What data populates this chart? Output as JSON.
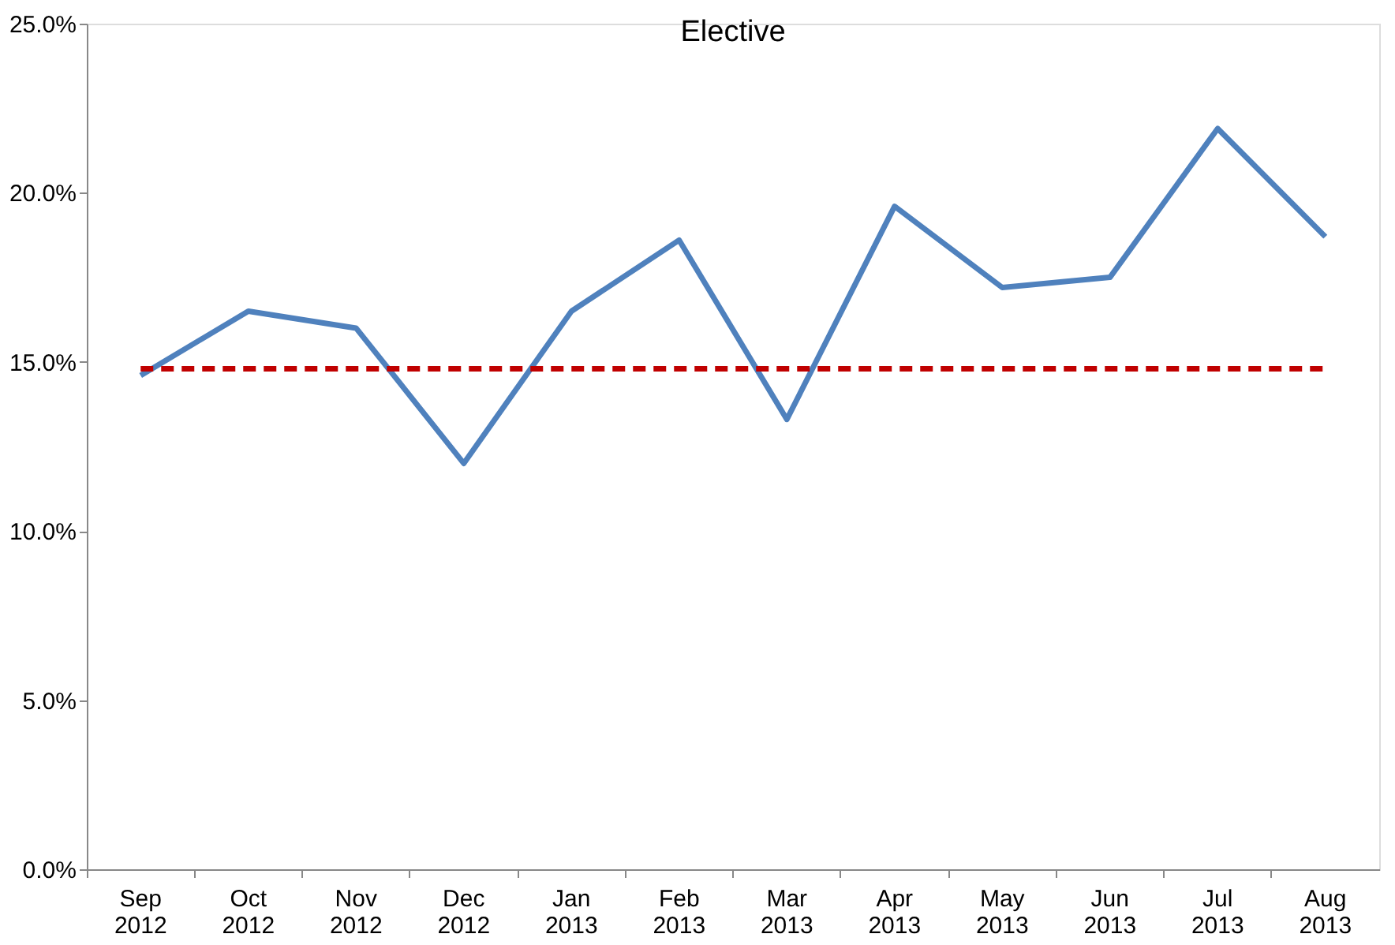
{
  "chart_data": {
    "type": "line",
    "title": "Elective",
    "categories": [
      "Sep 2012",
      "Oct 2012",
      "Nov 2012",
      "Dec 2012",
      "Jan 2013",
      "Feb 2013",
      "Mar 2013",
      "Apr 2013",
      "May 2013",
      "Jun 2013",
      "Jul 2013",
      "Aug 2013"
    ],
    "series": [
      {
        "color": "#4f81bd",
        "values": [
          14.6,
          16.5,
          16.0,
          12.0,
          16.5,
          18.6,
          13.3,
          19.6,
          17.2,
          17.5,
          21.9,
          18.7
        ]
      }
    ],
    "ylim": [
      0,
      25
    ],
    "yticks": [
      {
        "value": 0,
        "label": "0.0%"
      },
      {
        "value": 5,
        "label": "5.0%"
      },
      {
        "value": 10,
        "label": "10.0%"
      },
      {
        "value": 15,
        "label": "15.0%"
      },
      {
        "value": 20,
        "label": "20.0%"
      },
      {
        "value": 25,
        "label": "25.0%"
      }
    ],
    "ref_lines": [
      {
        "axis": "y",
        "value": 14.8,
        "color": "#c00000",
        "line_style": "dashed"
      }
    ],
    "grid": false,
    "marker": "none",
    "line_style": "solid"
  }
}
